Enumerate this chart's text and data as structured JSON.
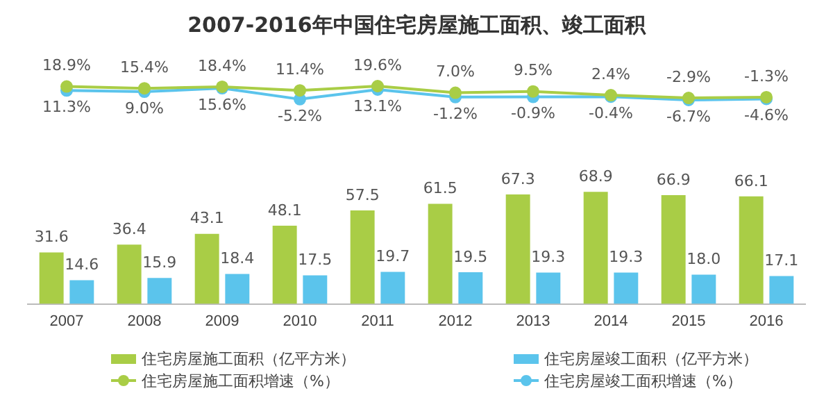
{
  "chart_data": [
    {
      "type": "line",
      "title": "2007-2016年中国住宅房屋施工面积、竣工面积",
      "categories": [
        "2007",
        "2008",
        "2009",
        "2010",
        "2011",
        "2012",
        "2013",
        "2014",
        "2015",
        "2016"
      ],
      "series": [
        {
          "name": "住宅房屋施工面积增速（%）",
          "color": "#a9cd46",
          "values": [
            18.9,
            15.4,
            18.4,
            11.4,
            19.6,
            7.0,
            9.5,
            2.4,
            -2.9,
            -1.3
          ],
          "value_labels": [
            "18.9%",
            "15.4%",
            "18.4%",
            "11.4%",
            "19.6%",
            "7.0%",
            "9.5%",
            "2.4%",
            "-2.9%",
            "-1.3%"
          ]
        },
        {
          "name": "住宅房屋竣工面积增速（%）",
          "color": "#5bc4ec",
          "values": [
            11.3,
            9.0,
            15.6,
            -5.2,
            13.1,
            -1.2,
            -0.9,
            -0.4,
            -6.7,
            -4.6
          ],
          "value_labels": [
            "11.3%",
            "9.0%",
            "15.6%",
            "-5.2%",
            "13.1%",
            "-1.2%",
            "-0.9%",
            "-0.4%",
            "-6.7%",
            "-4.6%"
          ]
        }
      ],
      "grid": false,
      "legend": "bottom",
      "marker": "circle",
      "tick_labels": false
    },
    {
      "type": "bar",
      "categories": [
        "2007",
        "2008",
        "2009",
        "2010",
        "2011",
        "2012",
        "2013",
        "2014",
        "2015",
        "2016"
      ],
      "series": [
        {
          "name": "住宅房屋施工面积（亿平方米）",
          "color": "#a9cd46",
          "values": [
            31.6,
            36.4,
            43.1,
            48.1,
            57.5,
            61.5,
            67.3,
            68.9,
            66.9,
            66.1
          ],
          "value_labels": [
            "31.6",
            "36.4",
            "43.1",
            "48.1",
            "57.5",
            "61.5",
            "67.3",
            "68.9",
            "66.9",
            "66.1"
          ]
        },
        {
          "name": "住宅房屋竣工面积（亿平方米）",
          "color": "#5bc4ec",
          "values": [
            14.6,
            15.9,
            18.4,
            17.5,
            19.7,
            19.5,
            19.3,
            19.3,
            18.0,
            17.1
          ],
          "value_labels": [
            "14.6",
            "15.9",
            "18.4",
            "17.5",
            "19.7",
            "19.5",
            "19.3",
            "19.3",
            "18.0",
            "17.1"
          ]
        }
      ],
      "grid": false,
      "legend": "bottom",
      "tick_labels": "x"
    }
  ]
}
